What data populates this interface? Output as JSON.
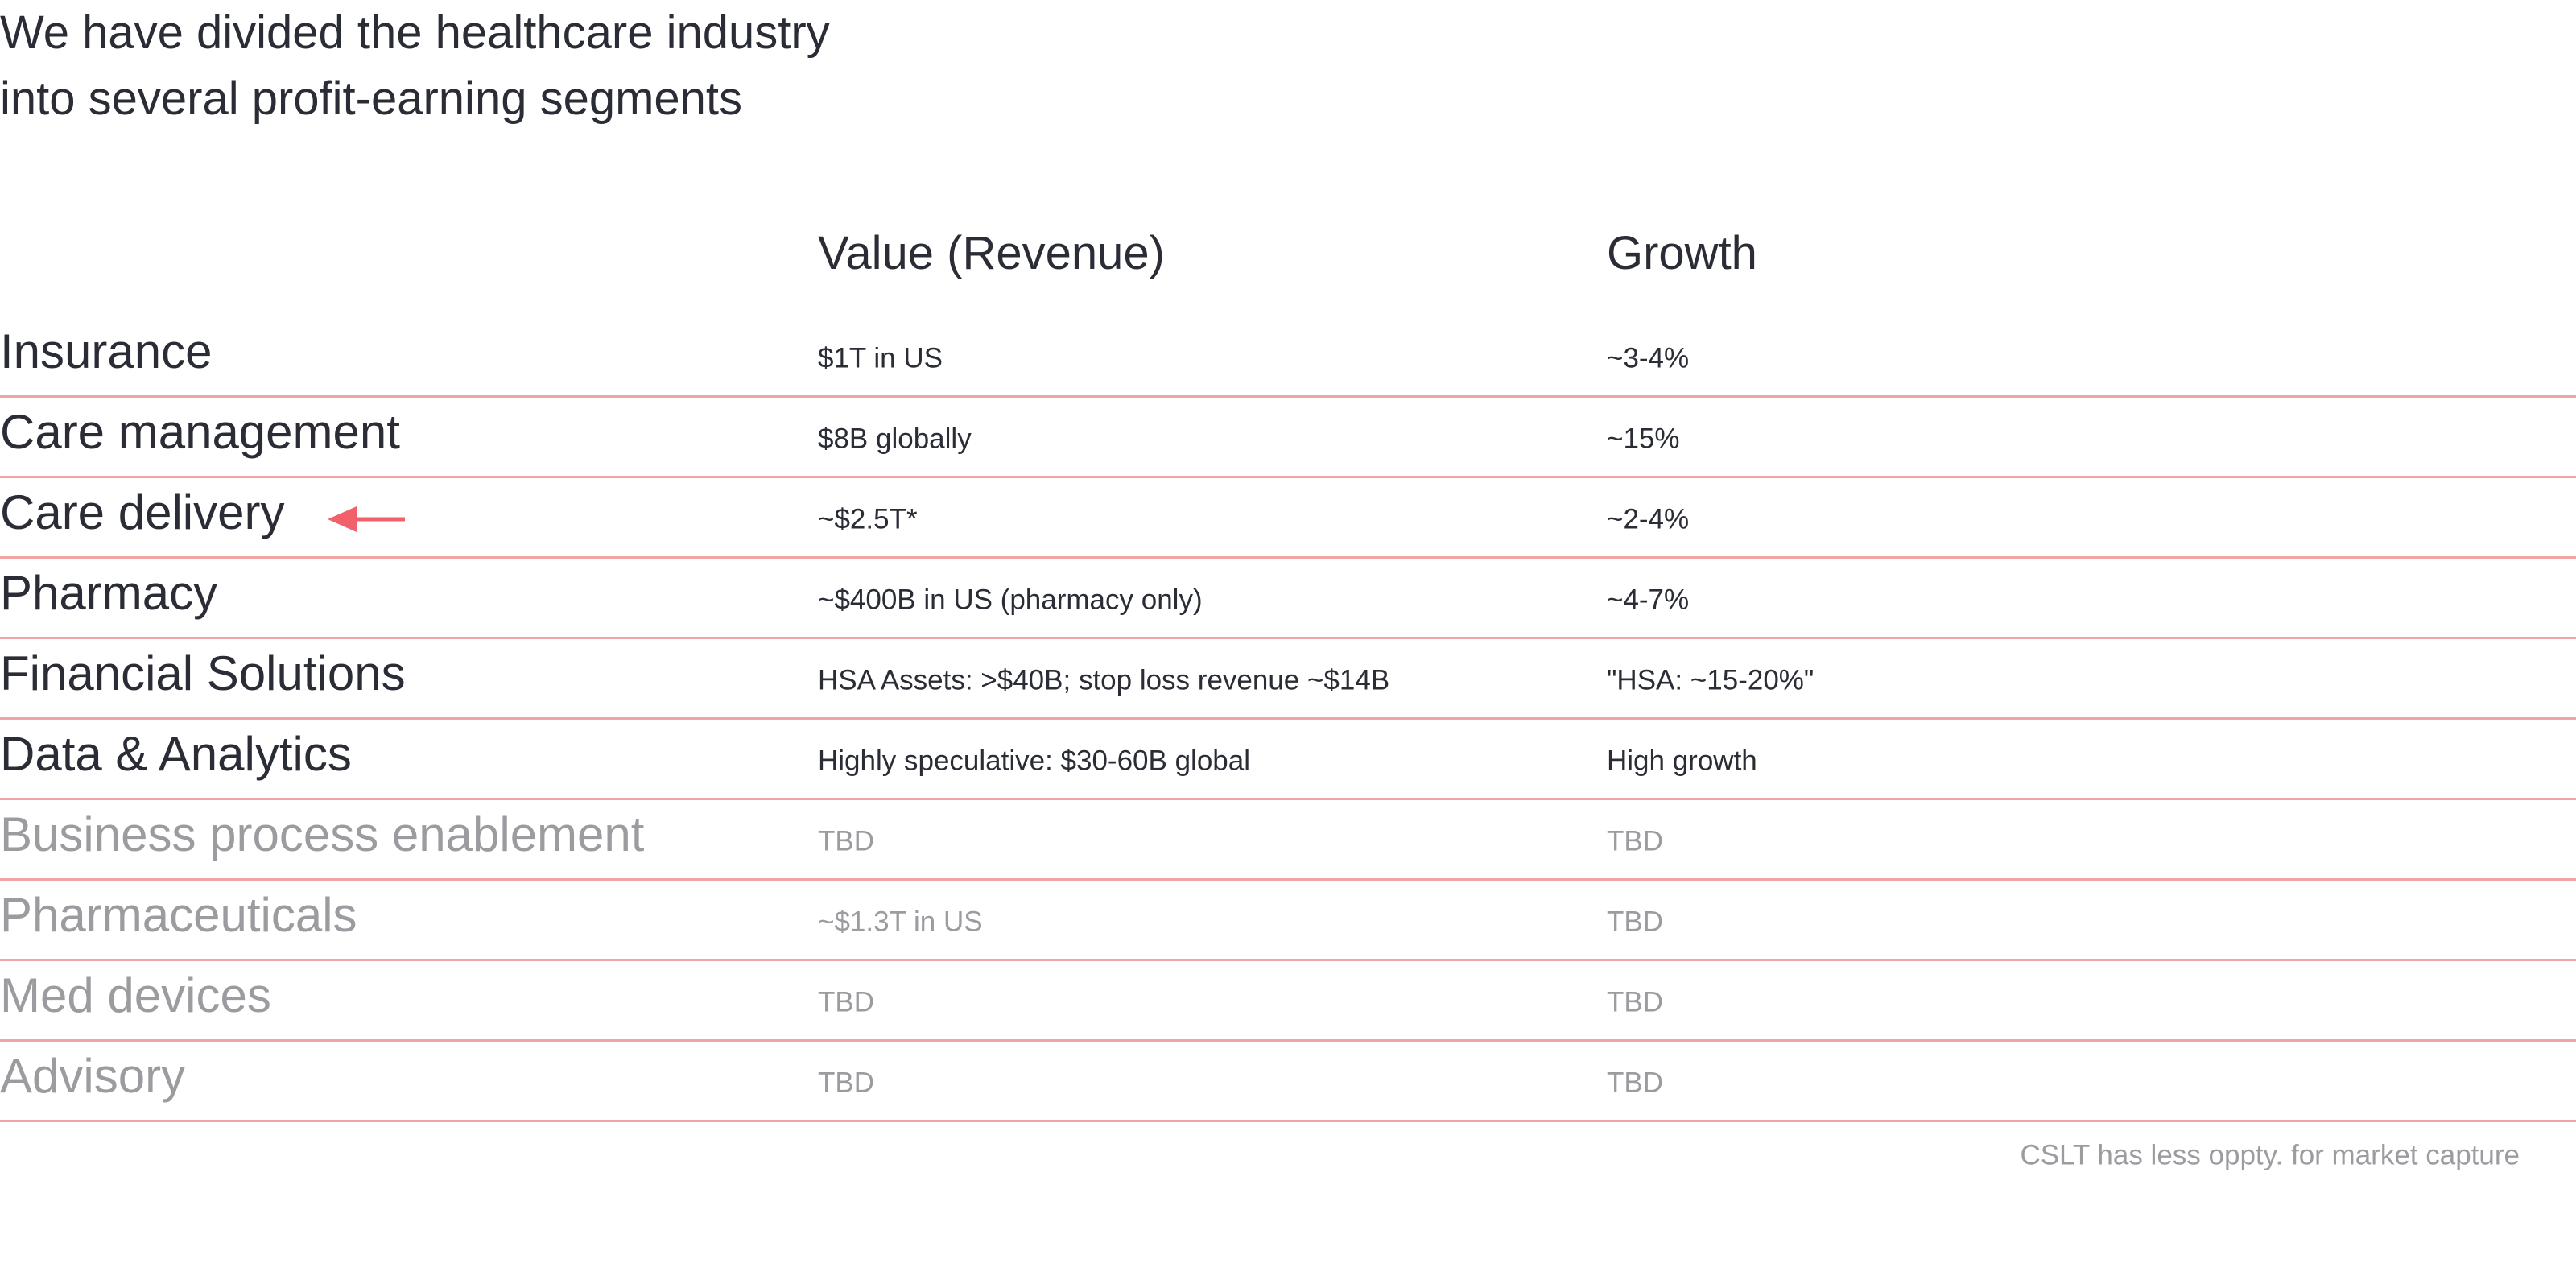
{
  "header": {
    "title_lines": [
      "We have divided the healthcare industry",
      "into several profit-earning segments"
    ]
  },
  "table": {
    "columns": [
      "Value (Revenue)",
      "Growth"
    ],
    "rows": [
      [
        "Insurance",
        "$1T in US",
        "~3-4%"
      ],
      [
        "Care management",
        "$8B globally",
        "~15%"
      ],
      [
        "Care delivery",
        "~$2.5T*",
        "~2-4%"
      ],
      [
        "Pharmacy",
        "~$400B in US (pharmacy only)",
        "~4-7%"
      ],
      [
        "Financial Solutions",
        "HSA Assets: >$40B; stop loss revenue ~$14B",
        "\"HSA: ~15-20%\""
      ],
      [
        "Data & Analytics",
        "Highly speculative: $30-60B global",
        "High growth"
      ],
      [
        "Business process enablement",
        "TBD",
        "TBD"
      ],
      [
        "Pharmaceuticals",
        "~$1.3T in US",
        "TBD"
      ],
      [
        "Med devices",
        "TBD",
        "TBD"
      ],
      [
        "Advisory",
        "TBD",
        "TBD"
      ]
    ]
  },
  "footnote": "CSLT has less oppty. for market capture"
}
